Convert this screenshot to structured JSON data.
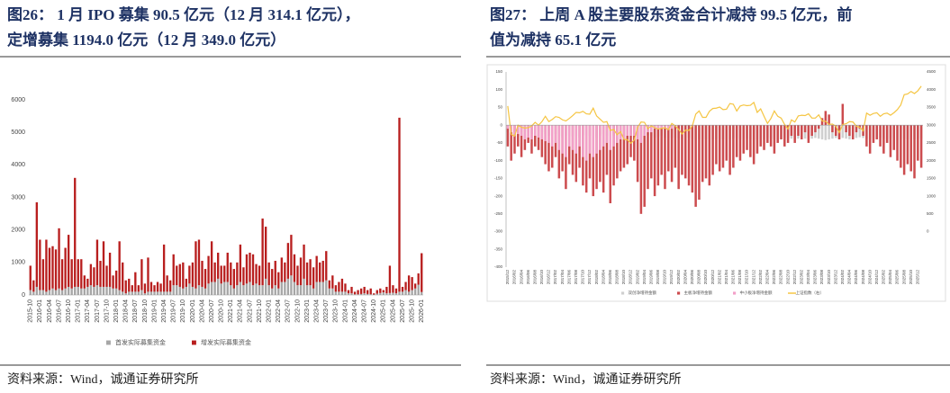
{
  "chart_data": [
    {
      "type": "bar",
      "stacked": true,
      "title": [
        "图26：   1 月 IPO 募集 90.5 亿元（12 月 314.1 亿元），",
        "定增募集 1194.0 亿元（12 月 349.0 亿元）"
      ],
      "source": "资料来源：Wind，诚通证券研究所",
      "categories": [
        "2015-10",
        null,
        null,
        "2016-01",
        null,
        null,
        "2016-04",
        null,
        null,
        "2016-07",
        null,
        null,
        "2016-10",
        null,
        null,
        "2017-01",
        null,
        null,
        "2017-04",
        null,
        null,
        "2017-07",
        null,
        null,
        "2017-10",
        null,
        null,
        "2018-01",
        null,
        null,
        "2018-04",
        null,
        null,
        "2018-07",
        null,
        null,
        "2018-10",
        null,
        null,
        "2019-01",
        null,
        null,
        "2019-04",
        null,
        null,
        "2019-07",
        null,
        null,
        "2019-10",
        null,
        null,
        "2020-01",
        null,
        null,
        "2020-04",
        null,
        null,
        "2020-07",
        null,
        null,
        "2020-10",
        null,
        null,
        "2021-01",
        null,
        null,
        "2021-04",
        null,
        null,
        "2021-07",
        null,
        null,
        "2021-10",
        null,
        null,
        "2022-01",
        null,
        null,
        "2022-04",
        null,
        null,
        "2022-07",
        null,
        null,
        "2022-10",
        null,
        null,
        "2023-01",
        null,
        null,
        "2023-04",
        null,
        null,
        "2023-07",
        null,
        null,
        "2023-10",
        null,
        null,
        "2024-01",
        null,
        null,
        "2024-04",
        null,
        null,
        "2024-07",
        null,
        null,
        "2024-10",
        null,
        null,
        "2025-01",
        null,
        null,
        "2025-04",
        null,
        null,
        "2025-07",
        null,
        null,
        "2025-10",
        null,
        null,
        "2026-01"
      ],
      "series": [
        {
          "name": "首发实际募集资金",
          "color": "#a6a6a6",
          "values": [
            150,
            100,
            250,
            150,
            150,
            100,
            150,
            200,
            150,
            200,
            150,
            200,
            250,
            200,
            250,
            250,
            200,
            200,
            250,
            300,
            250,
            300,
            250,
            250,
            250,
            250,
            200,
            200,
            150,
            100,
            50,
            100,
            100,
            100,
            100,
            150,
            50,
            100,
            100,
            100,
            100,
            100,
            100,
            100,
            100,
            300,
            300,
            250,
            200,
            250,
            350,
            250,
            200,
            300,
            250,
            200,
            350,
            400,
            400,
            500,
            350,
            400,
            400,
            300,
            200,
            300,
            400,
            300,
            350,
            400,
            300,
            350,
            300,
            300,
            500,
            300,
            200,
            300,
            200,
            400,
            400,
            500,
            600,
            400,
            300,
            300,
            500,
            300,
            300,
            200,
            400,
            400,
            400,
            450,
            200,
            200,
            100,
            100,
            100,
            100,
            50,
            50,
            20,
            20,
            30,
            50,
            30,
            20,
            10,
            40,
            60,
            80,
            50,
            60,
            70,
            50,
            100,
            100,
            150,
            100,
            150,
            200,
            314.1,
            90.5
          ]
        },
        {
          "name": "增发实际募集资金",
          "color": "#b81e1e",
          "values": [
            750,
            350,
            2600,
            1550,
            950,
            1600,
            1300,
            1300,
            1250,
            1850,
            950,
            1250,
            1600,
            900,
            3350,
            850,
            900,
            400,
            250,
            650,
            600,
            1400,
            800,
            1400,
            650,
            1050,
            400,
            550,
            1500,
            900,
            400,
            400,
            200,
            600,
            200,
            950,
            300,
            1050,
            300,
            200,
            300,
            250,
            1450,
            500,
            350,
            950,
            600,
            700,
            800,
            250,
            550,
            750,
            1450,
            1400,
            800,
            600,
            850,
            1250,
            600,
            800,
            550,
            500,
            900,
            700,
            600,
            700,
            1150,
            550,
            900,
            900,
            950,
            600,
            600,
            2050,
            1600,
            700,
            600,
            750,
            500,
            750,
            600,
            1100,
            1250,
            850,
            600,
            850,
            1050,
            700,
            800,
            650,
            800,
            600,
            650,
            900,
            250,
            400,
            200,
            300,
            400,
            250,
            100,
            200,
            80,
            130,
            170,
            200,
            120,
            180,
            40,
            110,
            140,
            70,
            200,
            840,
            230,
            150,
            5350,
            150,
            250,
            500,
            400,
            150,
            349.0,
            1194.0
          ]
        }
      ],
      "ylim": [
        0,
        6000
      ],
      "yticks": [
        0,
        1000,
        2000,
        3000,
        4000,
        5000,
        6000
      ],
      "grid": false,
      "legend": "bottom"
    },
    {
      "type": "combo",
      "title": [
        "图27：   上周 A 股主要股东资金合计减持 99.5 亿元，前",
        "值为减持 65.1 亿元"
      ],
      "source": "资料来源：Wind，诚通证券研究所",
      "categories": [
        "2015/12",
        null,
        "2016/02",
        null,
        "2016/04",
        null,
        "2016/06",
        null,
        "2016/08",
        null,
        "2016/10",
        null,
        "2016/12",
        null,
        "2017/02",
        null,
        "2017/04",
        null,
        "2017/06",
        null,
        "2017/08",
        null,
        "2017/10",
        null,
        "2017/12",
        null,
        "2018/02",
        null,
        "2018/04",
        null,
        "2018/06",
        null,
        "2018/08",
        null,
        "2018/10",
        null,
        "2018/12",
        null,
        "2019/02",
        null,
        "2019/04",
        null,
        "2019/06",
        null,
        "2019/08",
        null,
        "2019/10",
        null,
        "2019/12",
        null,
        "2020/02",
        null,
        "2020/04",
        null,
        "2020/06",
        null,
        "2020/08",
        null,
        "2020/10",
        null,
        "2020/12",
        null,
        "2021/02",
        null,
        "2021/04",
        null,
        "2021/06",
        null,
        "2021/08",
        null,
        "2021/10",
        null,
        "2021/12",
        null,
        "2022/02",
        null,
        "2022/04",
        null,
        "2022/06",
        null,
        "2022/08",
        null,
        "2022/10",
        null,
        "2022/12",
        null,
        "2023/02",
        null,
        "2023/04",
        null,
        "2023/06",
        null,
        "2023/08",
        null,
        "2023/10",
        null,
        "2023/12",
        null,
        "2024/02",
        null,
        "2024/04",
        null,
        "2024/06",
        null,
        "2024/08",
        null,
        "2024/10",
        null,
        "2024/12",
        null,
        "2025/02",
        null,
        "2025/04",
        null,
        "2025/06",
        null,
        "2025/08",
        null,
        "2025/10",
        null,
        "2025/12",
        null
      ],
      "series": [
        {
          "name": "双创净增持金额",
          "color": "#cfcfcf",
          "values": [
            -20,
            -15,
            -20,
            -25,
            -20,
            -18,
            -22,
            -25,
            -20,
            -15,
            -20,
            -25,
            -30,
            -30,
            -25,
            -30,
            -35,
            -30,
            -28,
            -32,
            -30,
            -35,
            -30,
            -28,
            -30,
            -30,
            -35,
            -30,
            -25,
            -30,
            -35,
            -30,
            -28,
            -25,
            -30,
            -30,
            -28,
            -30,
            -32,
            -35,
            -30,
            -28,
            -30,
            -35,
            -32,
            -30,
            -35,
            -38,
            -36,
            -35,
            -38,
            -40,
            -36,
            -35,
            -40,
            -42,
            -40,
            -38,
            -40,
            -42,
            -40,
            -40,
            -38,
            -40,
            -42,
            -40,
            -38,
            -36,
            -40,
            -42,
            -38,
            -40,
            -42,
            -40,
            -38,
            -40,
            -36,
            -38,
            -40,
            -42,
            -40,
            -38,
            -36,
            -38,
            -40,
            -38,
            -36,
            -38,
            -40,
            -38,
            -36,
            -38,
            -40,
            -42,
            -40,
            -38,
            -36,
            -38,
            -36,
            -38,
            -40,
            -38,
            -36,
            -34,
            -36,
            -38,
            -40,
            -38,
            -36,
            -36,
            -38,
            -40,
            -38,
            -40,
            -42,
            -40,
            -38,
            -40,
            -42,
            -40,
            -38,
            -38
          ]
        },
        {
          "name": "主板净增持金额",
          "color": "#cc4b4e",
          "values": [
            -60,
            -100,
            -80,
            -60,
            -90,
            -70,
            -50,
            -80,
            -60,
            -70,
            -90,
            -110,
            -130,
            -120,
            -90,
            -150,
            -130,
            -180,
            -110,
            -140,
            -160,
            -120,
            -170,
            -190,
            -150,
            -200,
            -180,
            -160,
            -190,
            -140,
            -220,
            -170,
            -150,
            -130,
            -120,
            -110,
            -90,
            -100,
            -160,
            -250,
            -230,
            -180,
            -150,
            -200,
            -170,
            -140,
            -180,
            -130,
            -160,
            -120,
            -180,
            -140,
            -150,
            -170,
            -190,
            -230,
            -210,
            -160,
            -150,
            -170,
            -140,
            -110,
            -130,
            -120,
            -100,
            -140,
            -120,
            -90,
            -100,
            -80,
            -70,
            -90,
            -110,
            -80,
            -60,
            -70,
            -50,
            -60,
            -80,
            -50,
            -40,
            -60,
            -50,
            -30,
            -50,
            -30,
            -40,
            -20,
            -50,
            -30,
            -20,
            -10,
            20,
            40,
            30,
            -20,
            -30,
            -40,
            60,
            -20,
            -30,
            -40,
            -20,
            -10,
            -30,
            -60,
            -80,
            -50,
            -40,
            -60,
            -80,
            -50,
            -90,
            -70,
            -100,
            -120,
            -140,
            -110,
            -130,
            -150,
            -100,
            -120
          ]
        },
        {
          "name": "中小板净增持金额",
          "color": "#f2a0c8",
          "values": [
            -10,
            -20,
            -30,
            -25,
            -30,
            -40,
            -35,
            -40,
            -30,
            -35,
            -40,
            -45,
            -50,
            -60,
            -50,
            -70,
            -80,
            -90,
            -60,
            -70,
            -80,
            -60,
            -90,
            -100,
            -80,
            -90,
            -80,
            -70,
            -60,
            -50,
            -70,
            -60,
            -50,
            -40,
            -40,
            -30,
            -30,
            -30,
            -40,
            -50,
            -30,
            -20,
            -20,
            -10,
            -10,
            -10,
            -10,
            -10,
            -10,
            0,
            0,
            0,
            0,
            0,
            0,
            0,
            0,
            0,
            0,
            0,
            0,
            0,
            0,
            0,
            0,
            0,
            0,
            0,
            0,
            0,
            0,
            0,
            0,
            0,
            0,
            0,
            0,
            0,
            0,
            0,
            0,
            0,
            0,
            0,
            0,
            0,
            0,
            0,
            0,
            0,
            0,
            0,
            0,
            0,
            0,
            0,
            0,
            0,
            0,
            0,
            0,
            0,
            0,
            0,
            0,
            0,
            0,
            0,
            0,
            0,
            0,
            0,
            0,
            0,
            0,
            0,
            0,
            0,
            0,
            0,
            0,
            0
          ]
        },
        {
          "name": "上证指数（右）",
          "color": "#f5c542",
          "axis": "y2",
          "values": [
            3540,
            2740,
            2690,
            3000,
            2940,
            2920,
            2930,
            2980,
            3080,
            3000,
            3100,
            3250,
            3100,
            3160,
            3240,
            3220,
            3150,
            3120,
            3190,
            3270,
            3360,
            3350,
            3390,
            3320,
            3310,
            3480,
            3260,
            3170,
            3080,
            3100,
            2850,
            2880,
            2730,
            2820,
            2600,
            2590,
            2490,
            2580,
            2940,
            3090,
            3080,
            2900,
            2980,
            2930,
            2890,
            2910,
            2930,
            2870,
            3050,
            2980,
            2880,
            2750,
            2860,
            2850,
            2980,
            3310,
            3400,
            3220,
            3220,
            3390,
            3470,
            3480,
            3510,
            3440,
            3450,
            3610,
            3590,
            3400,
            3540,
            3570,
            3550,
            3560,
            3640,
            3360,
            3460,
            3250,
            3050,
            3190,
            3400,
            3250,
            3200,
            3020,
            2890,
            3150,
            3090,
            3260,
            3280,
            3270,
            3320,
            3200,
            3200,
            3290,
            3120,
            3110,
            3020,
            3030,
            2970,
            2790,
            3020,
            3040,
            3100,
            3090,
            2970,
            2940,
            2840,
            3340,
            3280,
            3330,
            3350,
            3250,
            3320,
            3340,
            3280,
            3350,
            3440,
            3570,
            3860,
            3880,
            3950,
            3890,
            3970,
            4100
          ]
        }
      ],
      "ylim": [
        -400,
        150
      ],
      "yticks": [
        -400,
        -350,
        -300,
        -250,
        -200,
        -150,
        -100,
        -50,
        0,
        50,
        100,
        150
      ],
      "y2lim": [
        -1000,
        4500
      ],
      "y2ticks": [
        0,
        500,
        1000,
        1500,
        2000,
        2500,
        3000,
        3500,
        4000,
        4500
      ],
      "grid": false,
      "legend": "bottom"
    }
  ]
}
